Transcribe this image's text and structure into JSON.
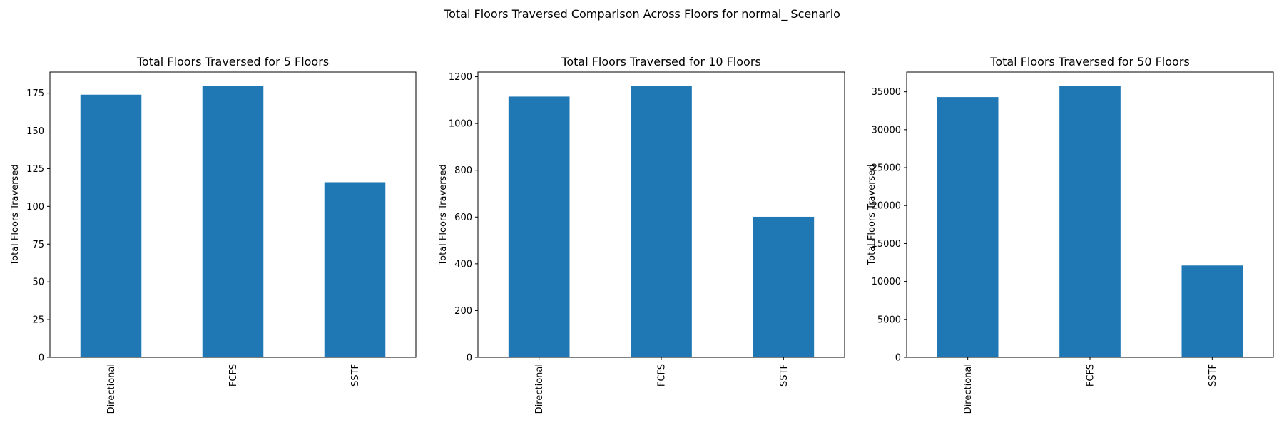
{
  "figure": {
    "suptitle": "Total Floors Traversed Comparison Across Floors for normal_ Scenario"
  },
  "colors": {
    "bar": "#1f77b4",
    "axis": "#000000",
    "background": "#ffffff"
  },
  "chart_data": [
    {
      "type": "bar",
      "title": "Total Floors Traversed for 5 Floors",
      "xlabel": "",
      "ylabel": "Total Floors Traversed",
      "categories": [
        "Directional",
        "FCFS",
        "SSTF"
      ],
      "values": [
        174,
        180,
        116
      ],
      "ylim": [
        0,
        189
      ],
      "yticks": [
        0,
        25,
        50,
        75,
        100,
        125,
        150,
        175
      ],
      "grid": false,
      "legend": "none"
    },
    {
      "type": "bar",
      "title": "Total Floors Traversed for 10 Floors",
      "xlabel": "",
      "ylabel": "Total Floors Traversed",
      "categories": [
        "Directional",
        "FCFS",
        "SSTF"
      ],
      "values": [
        1115,
        1162,
        601
      ],
      "ylim": [
        0,
        1220
      ],
      "yticks": [
        0,
        200,
        400,
        600,
        800,
        1000,
        1200
      ],
      "grid": false,
      "legend": "none"
    },
    {
      "type": "bar",
      "title": "Total Floors Traversed for 50 Floors",
      "xlabel": "",
      "ylabel": "Total Floors Traversed",
      "categories": [
        "Directional",
        "FCFS",
        "SSTF"
      ],
      "values": [
        34300,
        35800,
        12100
      ],
      "ylim": [
        0,
        37600
      ],
      "yticks": [
        0,
        5000,
        10000,
        15000,
        20000,
        25000,
        30000,
        35000
      ],
      "grid": false,
      "legend": "none"
    }
  ]
}
